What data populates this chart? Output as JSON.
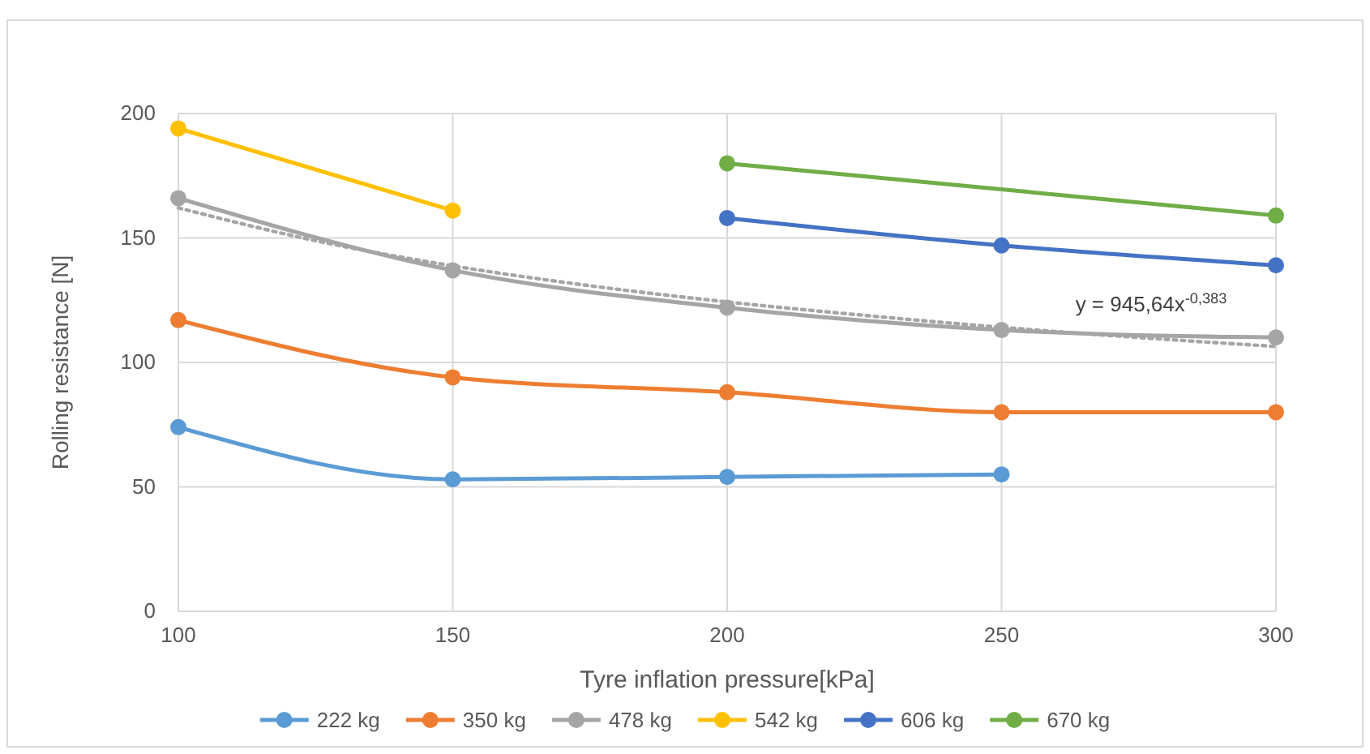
{
  "chart_data": {
    "type": "line",
    "xlabel": "Tyre inflation pressure[kPa]",
    "ylabel": "Rolling resistance [N]",
    "xlim": [
      100,
      300
    ],
    "xticks": [
      100,
      150,
      200,
      250,
      300
    ],
    "ylim": [
      0,
      200
    ],
    "yticks": [
      0,
      50,
      100,
      150,
      200
    ],
    "grid": true,
    "legend": "bottom",
    "marker": "circle",
    "line_style": "solid",
    "series": [
      {
        "name": "222 kg",
        "color": "#5b9bd5",
        "x": [
          100,
          150,
          200,
          250
        ],
        "values": [
          74,
          53,
          54,
          55
        ]
      },
      {
        "name": "350 kg",
        "color": "#ed7d31",
        "x": [
          100,
          150,
          200,
          250,
          300
        ],
        "values": [
          117,
          94,
          88,
          80,
          80
        ]
      },
      {
        "name": "478 kg",
        "color": "#a5a5a5",
        "x": [
          100,
          150,
          200,
          250,
          300
        ],
        "values": [
          166,
          137,
          122,
          113,
          110
        ]
      },
      {
        "name": "542 kg",
        "color": "#ffc000",
        "x": [
          100,
          150
        ],
        "values": [
          194,
          161
        ]
      },
      {
        "name": "606 kg",
        "color": "#4472c4",
        "x": [
          200,
          250,
          300
        ],
        "values": [
          158,
          147,
          139
        ]
      },
      {
        "name": "670 kg",
        "color": "#70ad47",
        "x": [
          200,
          300
        ],
        "values": [
          180,
          159
        ]
      },
      {
        "type": "line",
        "color": "#a5a5a5",
        "marker": "none",
        "line_style": "dotted",
        "x": [
          100,
          125,
          150,
          175,
          200,
          225,
          250,
          275,
          300
        ],
        "values": [
          162.1,
          148.9,
          138.8,
          130.8,
          124.3,
          118.9,
          114.1,
          110.0,
          106.4
        ]
      }
    ],
    "annotations": [
      "y = 945,64x$^{-0,383}$"
    ]
  }
}
